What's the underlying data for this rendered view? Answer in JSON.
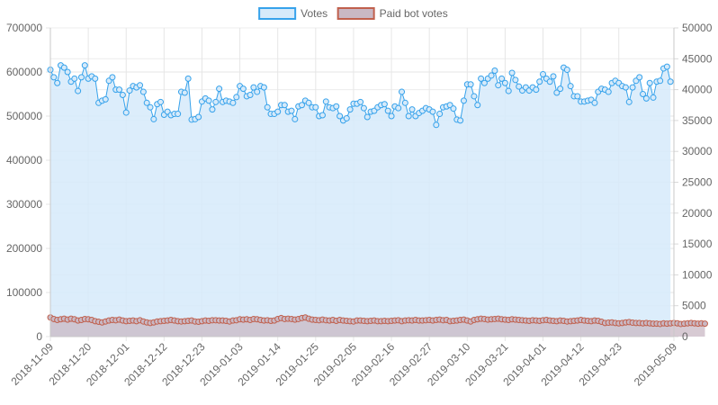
{
  "chart_data": {
    "type": "line",
    "x_ticks": [
      "2018-11-09",
      "2018-11-20",
      "2018-12-01",
      "2018-12-12",
      "2018-12-23",
      "2019-01-03",
      "2019-01-14",
      "2019-01-25",
      "2019-02-05",
      "2019-02-16",
      "2019-02-27",
      "2019-03-10",
      "2019-03-21",
      "2019-04-01",
      "2019-04-12",
      "2019-04-23",
      "2019-05-09"
    ],
    "x_range": [
      "2018-11-09",
      "2019-05-09"
    ],
    "y_left": {
      "min": 0,
      "max": 700000,
      "step": 100000,
      "ticks": [
        "0",
        "100000",
        "200000",
        "300000",
        "400000",
        "500000",
        "600000",
        "700000"
      ]
    },
    "y_right": {
      "min": 0,
      "max": 50000,
      "step": 5000,
      "ticks": [
        "0",
        "5000",
        "10000",
        "15000",
        "20000",
        "25000",
        "30000",
        "35000",
        "40000",
        "45000",
        "50000"
      ]
    },
    "grid": true,
    "legend_position": "top",
    "series": [
      {
        "name": "Votes",
        "axis": "left",
        "color": "#36a2eb",
        "fill": "#d6eafa",
        "start_date": "2018-11-09",
        "values": [
          605000,
          588000,
          575000,
          615000,
          610000,
          600000,
          578000,
          585000,
          557000,
          588000,
          615000,
          585000,
          590000,
          585000,
          530000,
          535000,
          538000,
          580000,
          588000,
          560000,
          560000,
          548000,
          508000,
          558000,
          568000,
          565000,
          570000,
          555000,
          530000,
          520000,
          493000,
          527000,
          532000,
          503000,
          510000,
          502000,
          505000,
          505000,
          555000,
          553000,
          585000,
          492000,
          493000,
          498000,
          533000,
          540000,
          535000,
          515000,
          532000,
          562000,
          532000,
          535000,
          533000,
          530000,
          543000,
          568000,
          562000,
          545000,
          548000,
          565000,
          555000,
          568000,
          565000,
          520000,
          505000,
          505000,
          510000,
          525000,
          525000,
          510000,
          512000,
          493000,
          522000,
          525000,
          535000,
          530000,
          520000,
          520000,
          500000,
          502000,
          533000,
          520000,
          518000,
          522000,
          500000,
          490000,
          495000,
          515000,
          528000,
          528000,
          532000,
          518000,
          498000,
          510000,
          512000,
          520000,
          525000,
          527000,
          512000,
          500000,
          522000,
          518000,
          555000,
          530000,
          500000,
          515000,
          500000,
          507000,
          512000,
          518000,
          515000,
          510000,
          480000,
          505000,
          520000,
          522000,
          525000,
          517000,
          492000,
          490000,
          535000,
          572000,
          572000,
          545000,
          525000,
          585000,
          575000,
          585000,
          592000,
          603000,
          570000,
          585000,
          575000,
          557000,
          598000,
          582000,
          567000,
          558000,
          565000,
          558000,
          565000,
          560000,
          578000,
          595000,
          585000,
          578000,
          590000,
          553000,
          562000,
          610000,
          605000,
          568000,
          545000,
          545000,
          533000,
          533000,
          535000,
          537000,
          530000,
          555000,
          562000,
          560000,
          555000,
          575000,
          580000,
          575000,
          568000,
          565000,
          532000,
          565000,
          580000,
          588000,
          550000,
          540000,
          575000,
          542000,
          578000,
          580000,
          608000,
          612000,
          578000
        ]
      },
      {
        "name": "Paid bot votes",
        "axis": "right",
        "color": "#c0604d",
        "fill": "#c9b8c4",
        "start_date": "2018-11-09",
        "values": [
          3100,
          2850,
          2700,
          2800,
          2900,
          2750,
          2900,
          2800,
          2600,
          2700,
          2850,
          2800,
          2700,
          2500,
          2400,
          2300,
          2450,
          2600,
          2700,
          2650,
          2750,
          2600,
          2500,
          2550,
          2600,
          2500,
          2650,
          2450,
          2300,
          2200,
          2300,
          2450,
          2500,
          2550,
          2600,
          2700,
          2600,
          2500,
          2450,
          2500,
          2550,
          2600,
          2450,
          2400,
          2500,
          2600,
          2550,
          2650,
          2650,
          2600,
          2600,
          2550,
          2450,
          2600,
          2650,
          2800,
          2750,
          2800,
          2700,
          2850,
          2800,
          2700,
          2600,
          2650,
          2550,
          2600,
          2850,
          3000,
          2850,
          2900,
          2850,
          2750,
          2850,
          3000,
          3100,
          2900,
          2750,
          2700,
          2650,
          2750,
          2650,
          2600,
          2700,
          2550,
          2700,
          2600,
          2550,
          2500,
          2450,
          2600,
          2600,
          2550,
          2500,
          2550,
          2600,
          2500,
          2500,
          2550,
          2500,
          2550,
          2600,
          2650,
          2500,
          2600,
          2650,
          2600,
          2700,
          2600,
          2600,
          2650,
          2700,
          2600,
          2700,
          2750,
          2650,
          2700,
          2500,
          2550,
          2600,
          2700,
          2750,
          2600,
          2450,
          2700,
          2800,
          2900,
          2850,
          2750,
          2800,
          2850,
          2900,
          2800,
          2750,
          2700,
          2800,
          2750,
          2700,
          2650,
          2600,
          2550,
          2650,
          2600,
          2550,
          2650,
          2700,
          2600,
          2550,
          2500,
          2600,
          2550,
          2450,
          2500,
          2550,
          2600,
          2700,
          2600,
          2550,
          2500,
          2600,
          2550,
          2400,
          2200,
          2250,
          2300,
          2200,
          2150,
          2200,
          2300,
          2350,
          2250,
          2200,
          2200,
          2150,
          2200,
          2150,
          2100,
          2100,
          2050,
          2150,
          2100,
          2150,
          2200,
          2150,
          2050,
          2100,
          2150,
          2200,
          2150,
          2100,
          2150,
          2100
        ]
      }
    ]
  }
}
